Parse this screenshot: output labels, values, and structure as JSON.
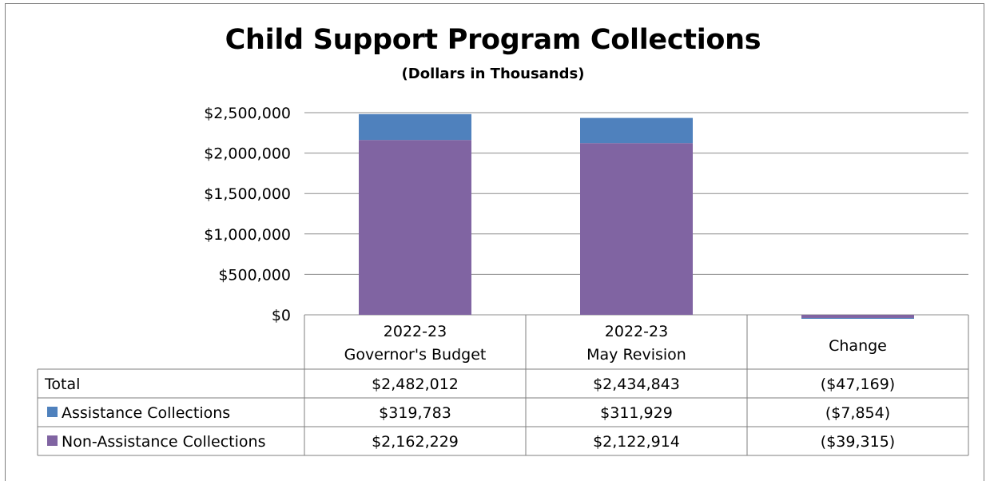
{
  "chart_data": {
    "type": "bar",
    "stacked": true,
    "title": "Child Support Program Collections",
    "subtitle": "(Dollars in Thousands)",
    "categories": [
      [
        "2022-23",
        "Governor's Budget"
      ],
      [
        "2022-23",
        "May Revision"
      ],
      [
        "Change"
      ]
    ],
    "ylim": [
      0,
      2500000
    ],
    "yticks": [
      "$0",
      "$500,000",
      "$1,000,000",
      "$1,500,000",
      "$2,000,000",
      "$2,500,000"
    ],
    "ytick_values": [
      0,
      500000,
      1000000,
      1500000,
      2000000,
      2500000
    ],
    "grid": true,
    "series": [
      {
        "name": "Non-Assistance Collections",
        "color": "#8064a2",
        "values": [
          2162229,
          2122914,
          -39315
        ]
      },
      {
        "name": "Assistance Collections",
        "color": "#4f81bd",
        "values": [
          319783,
          311929,
          -7854
        ]
      }
    ],
    "table": {
      "rows": [
        {
          "label": "Total",
          "cells": [
            "$2,482,012",
            "$2,434,843",
            "($47,169)"
          ],
          "swatch": ""
        },
        {
          "label": "Assistance Collections",
          "cells": [
            "$319,783",
            "$311,929",
            "($7,854)"
          ],
          "swatch": "#4f81bd"
        },
        {
          "label": "Non-Assistance Collections",
          "cells": [
            "$2,162,229",
            "$2,122,914",
            "($39,315)"
          ],
          "swatch": "#8064a2"
        }
      ]
    }
  }
}
